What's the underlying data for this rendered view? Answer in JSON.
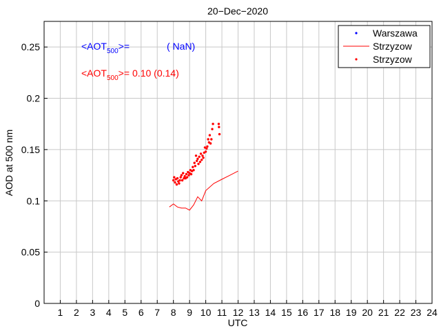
{
  "chart_data": {
    "type": "scatter",
    "title": "20−Dec−2020",
    "xlabel": "UTC",
    "ylabel": "AOD at 500 nm",
    "xlim": [
      0,
      24
    ],
    "ylim": [
      0,
      0.275
    ],
    "xticks": [
      "1",
      "2",
      "3",
      "4",
      "5",
      "6",
      "7",
      "8",
      "9",
      "10",
      "11",
      "12",
      "13",
      "14",
      "15",
      "16",
      "17",
      "18",
      "19",
      "20",
      "21",
      "22",
      "23",
      "24"
    ],
    "yticks": [
      "0",
      "0.05",
      "0.1",
      "0.15",
      "0.2",
      "0.25"
    ],
    "grid": true,
    "legend_position": "top-right",
    "colors": {
      "blue": "#0000ff",
      "red": "#ff0000"
    },
    "annotations": [
      {
        "prefix": "<AOT",
        "sub": "500",
        "suffix": ">=",
        "value": "( NaN)",
        "color": "#0000ff"
      },
      {
        "prefix": "<AOT",
        "sub": "500",
        "suffix": ">=",
        "value": "0.10 (0.14)",
        "color": "#ff0000"
      }
    ],
    "series": [
      {
        "name": "Warszawa",
        "kind": "points",
        "color": "#0000ff",
        "points": []
      },
      {
        "name": "Strzyzow",
        "kind": "line",
        "color": "#ff0000",
        "points": [
          [
            7.75,
            0.094
          ],
          [
            8.0,
            0.097
          ],
          [
            8.25,
            0.094
          ],
          [
            8.5,
            0.093
          ],
          [
            8.75,
            0.093
          ],
          [
            9.0,
            0.091
          ],
          [
            9.25,
            0.096
          ],
          [
            9.5,
            0.104
          ],
          [
            9.75,
            0.1
          ],
          [
            10.0,
            0.11
          ],
          [
            10.5,
            0.117
          ],
          [
            11.0,
            0.121
          ],
          [
            11.5,
            0.125
          ],
          [
            12.0,
            0.129
          ]
        ]
      },
      {
        "name": "Strzyzow",
        "kind": "points",
        "color": "#ff0000",
        "points": [
          [
            8.0,
            0.12
          ],
          [
            8.05,
            0.123
          ],
          [
            8.1,
            0.118
          ],
          [
            8.15,
            0.121
          ],
          [
            8.2,
            0.116
          ],
          [
            8.25,
            0.122
          ],
          [
            8.3,
            0.119
          ],
          [
            8.35,
            0.117
          ],
          [
            8.4,
            0.12
          ],
          [
            8.45,
            0.123
          ],
          [
            8.5,
            0.125
          ],
          [
            8.55,
            0.12
          ],
          [
            8.6,
            0.127
          ],
          [
            8.65,
            0.122
          ],
          [
            8.7,
            0.124
          ],
          [
            8.75,
            0.122
          ],
          [
            8.8,
            0.126
          ],
          [
            8.85,
            0.123
          ],
          [
            8.9,
            0.128
          ],
          [
            8.95,
            0.125
          ],
          [
            9.0,
            0.127
          ],
          [
            9.05,
            0.13
          ],
          [
            9.1,
            0.126
          ],
          [
            9.15,
            0.129
          ],
          [
            9.2,
            0.133
          ],
          [
            9.25,
            0.13
          ],
          [
            9.3,
            0.137
          ],
          [
            9.35,
            0.134
          ],
          [
            9.4,
            0.144
          ],
          [
            9.45,
            0.139
          ],
          [
            9.5,
            0.141
          ],
          [
            9.55,
            0.136
          ],
          [
            9.6,
            0.143
          ],
          [
            9.65,
            0.138
          ],
          [
            9.7,
            0.146
          ],
          [
            9.75,
            0.14
          ],
          [
            9.8,
            0.144
          ],
          [
            9.85,
            0.142
          ],
          [
            9.9,
            0.147
          ],
          [
            9.95,
            0.152
          ],
          [
            10.0,
            0.148
          ],
          [
            10.05,
            0.151
          ],
          [
            10.1,
            0.153
          ],
          [
            10.15,
            0.16
          ],
          [
            10.2,
            0.157
          ],
          [
            10.25,
            0.164
          ],
          [
            10.3,
            0.156
          ],
          [
            10.35,
            0.16
          ],
          [
            10.4,
            0.17
          ],
          [
            10.45,
            0.175
          ],
          [
            10.8,
            0.175
          ],
          [
            10.82,
            0.172
          ],
          [
            10.85,
            0.165
          ]
        ]
      }
    ]
  }
}
